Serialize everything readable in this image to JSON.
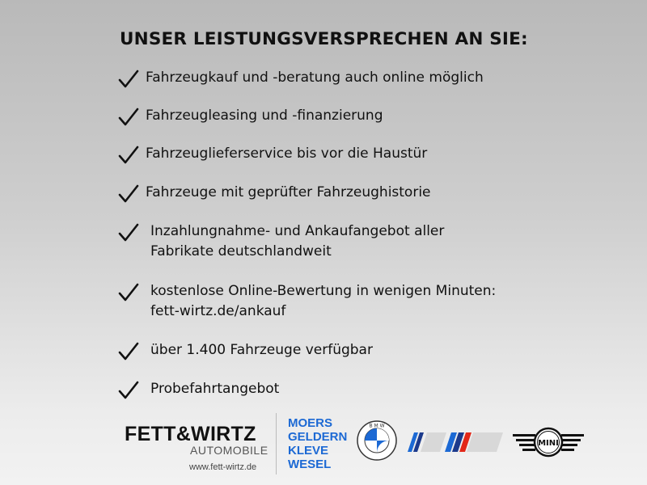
{
  "title": "UNSER LEISTUNGSVERSPRECHEN AN SIE:",
  "items": [
    {
      "lines": [
        "Fahrzeugkauf und -beratung auch online möglich"
      ]
    },
    {
      "lines": [
        "Fahrzeugleasing und -finanzierung"
      ]
    },
    {
      "lines": [
        "Fahrzeuglieferservice bis vor die Haustür"
      ]
    },
    {
      "lines": [
        "Fahrzeuge mit geprüfter Fahrzeughistorie"
      ]
    },
    {
      "lines": [
        "Inzahlungnahme- und Ankaufangebot aller",
        "Fabrikate deutschlandweit"
      ]
    },
    {
      "lines": [
        "kostenlose Online-Bewertung in wenigen Minuten:",
        "fett-wirtz.de/ankauf"
      ]
    },
    {
      "lines": [
        "über 1.400 Fahrzeuge verfügbar"
      ]
    },
    {
      "lines": [
        "Probefahrtangebot"
      ]
    }
  ],
  "footer": {
    "brand": "FETT&WIRTZ",
    "brand_sub": "AUTOMOBILE",
    "url": "www.fett-wirtz.de",
    "cities": [
      "MOERS",
      "GELDERN",
      "KLEVE",
      "WESEL"
    ],
    "logos": [
      "BMW",
      "BMW i",
      "BMW M",
      "MINI"
    ]
  },
  "colors": {
    "accent_blue": "#1c69d4",
    "text": "#111111",
    "m_red": "#e22718",
    "m_darkblue": "#1c3a8c"
  }
}
